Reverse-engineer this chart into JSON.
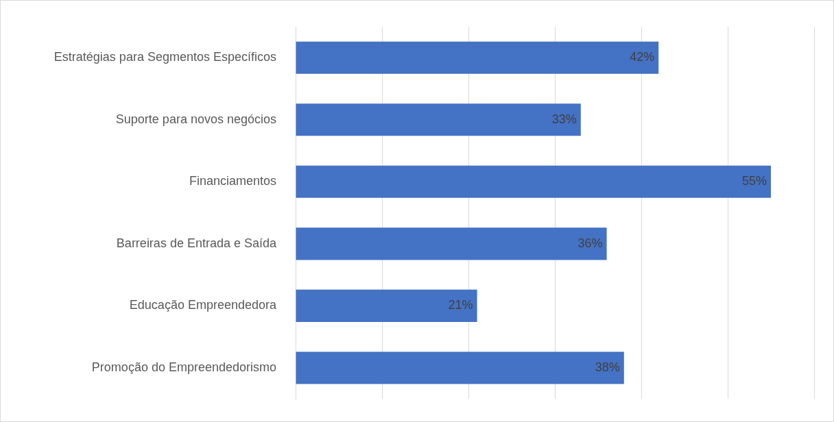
{
  "chart_data": {
    "type": "bar",
    "orientation": "horizontal",
    "categories": [
      "Estratégias para Segmentos Específicos",
      "Suporte para novos negócios",
      "Financiamentos",
      "Barreiras de Entrada e Saída",
      "Educação Empreendedora",
      "Promoção do Empreendedorismo"
    ],
    "values": [
      42,
      33,
      55,
      36,
      21,
      38
    ],
    "value_labels": [
      "42%",
      "33%",
      "55%",
      "36%",
      "21%",
      "38%"
    ],
    "color": "#4472c4",
    "xlim": [
      0,
      60
    ],
    "xticks": [
      {
        "value": 0,
        "label": null
      },
      {
        "value": 10,
        "label": null
      },
      {
        "value": 20,
        "label": null
      },
      {
        "value": 30,
        "label": null
      },
      {
        "value": 40,
        "label": null
      },
      {
        "value": 50,
        "label": null
      },
      {
        "value": 60,
        "label": null
      }
    ],
    "grid": "x",
    "tick_labels": "y",
    "legend": false
  }
}
